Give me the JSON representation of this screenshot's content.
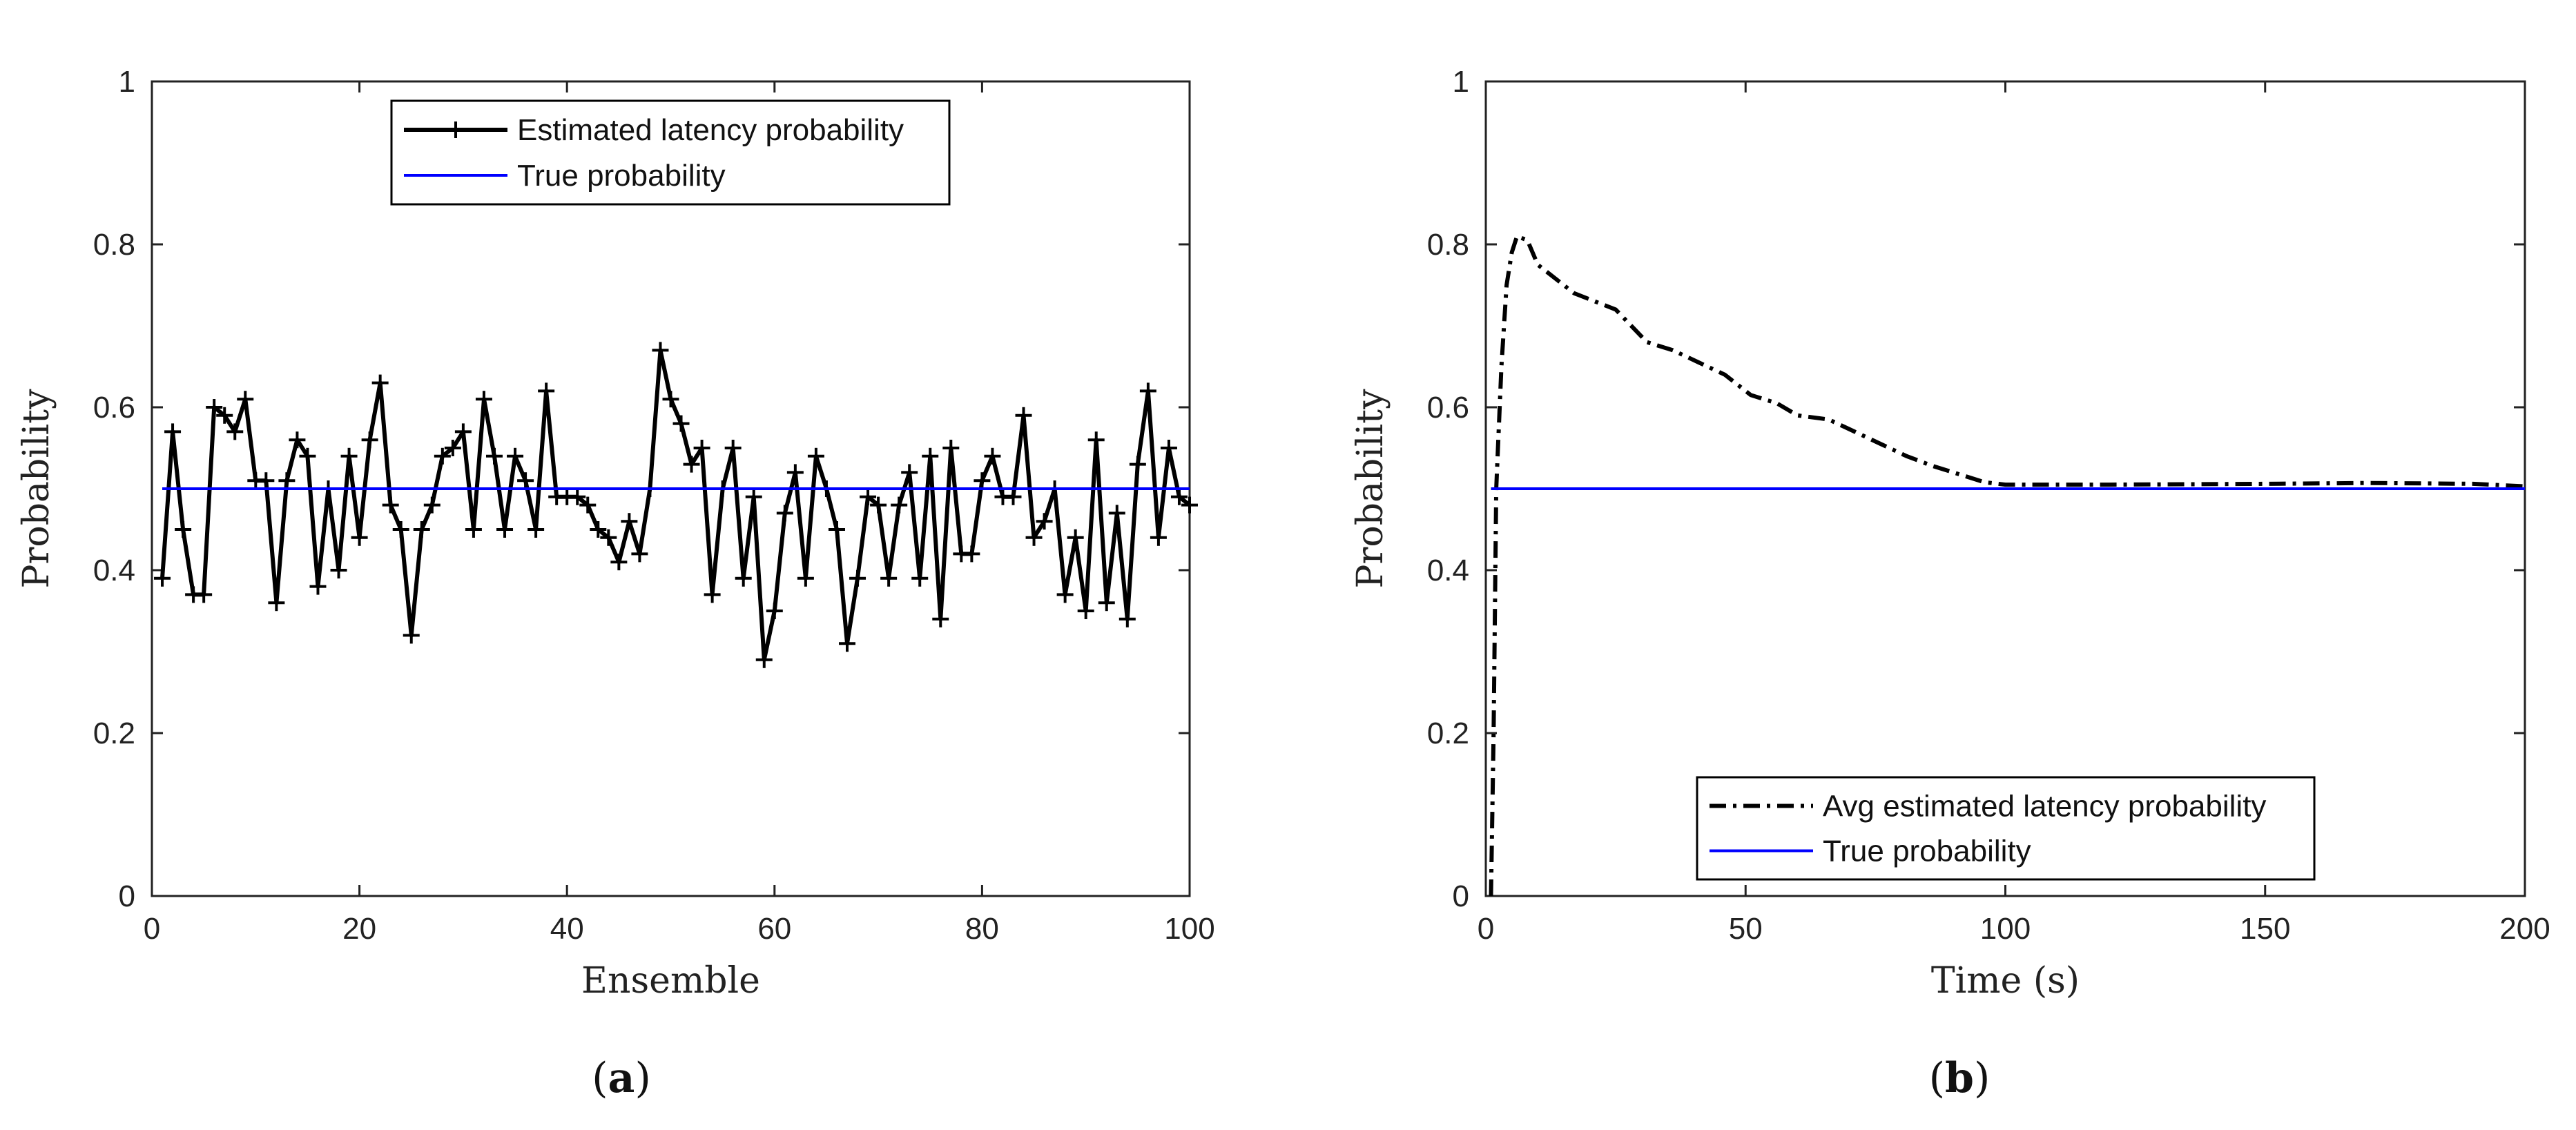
{
  "chart_data": [
    {
      "type": "line",
      "panel": "a",
      "caption_open": "(",
      "caption_letter": "a",
      "caption_close": ")",
      "xlabel": "Ensemble",
      "ylabel": "Probability",
      "xlim": [
        0,
        100
      ],
      "ylim": [
        0,
        1
      ],
      "xticks": [
        0,
        20,
        40,
        60,
        80,
        100
      ],
      "yticks": [
        0,
        0.2,
        0.4,
        0.6,
        0.8,
        1
      ],
      "xtick_labels": [
        "0",
        "20",
        "40",
        "60",
        "80",
        "100"
      ],
      "ytick_labels": [
        "0",
        "0.2",
        "0.4",
        "0.6",
        "0.8",
        "1"
      ],
      "legend_position": "top-center",
      "series": [
        {
          "name": "Estimated latency probability",
          "style": "solid-plus-markers",
          "color": "#000000",
          "x": [
            1,
            2,
            3,
            4,
            5,
            6,
            7,
            8,
            9,
            10,
            11,
            12,
            13,
            14,
            15,
            16,
            17,
            18,
            19,
            20,
            21,
            22,
            23,
            24,
            25,
            26,
            27,
            28,
            29,
            30,
            31,
            32,
            33,
            34,
            35,
            36,
            37,
            38,
            39,
            40,
            41,
            42,
            43,
            44,
            45,
            46,
            47,
            48,
            49,
            50,
            51,
            52,
            53,
            54,
            55,
            56,
            57,
            58,
            59,
            60,
            61,
            62,
            63,
            64,
            65,
            66,
            67,
            68,
            69,
            70,
            71,
            72,
            73,
            74,
            75,
            76,
            77,
            78,
            79,
            80,
            81,
            82,
            83,
            84,
            85,
            86,
            87,
            88,
            89,
            90,
            91,
            92,
            93,
            94,
            95,
            96,
            97,
            98,
            99,
            100
          ],
          "values": [
            0.39,
            0.57,
            0.45,
            0.37,
            0.37,
            0.6,
            0.59,
            0.57,
            0.61,
            0.51,
            0.51,
            0.36,
            0.51,
            0.56,
            0.54,
            0.38,
            0.5,
            0.4,
            0.54,
            0.44,
            0.56,
            0.63,
            0.48,
            0.45,
            0.32,
            0.45,
            0.48,
            0.54,
            0.55,
            0.57,
            0.45,
            0.61,
            0.54,
            0.45,
            0.54,
            0.51,
            0.45,
            0.62,
            0.49,
            0.49,
            0.49,
            0.48,
            0.45,
            0.44,
            0.41,
            0.46,
            0.42,
            0.5,
            0.67,
            0.61,
            0.58,
            0.53,
            0.55,
            0.37,
            0.5,
            0.55,
            0.39,
            0.49,
            0.29,
            0.35,
            0.47,
            0.52,
            0.39,
            0.54,
            0.5,
            0.45,
            0.31,
            0.39,
            0.49,
            0.48,
            0.39,
            0.48,
            0.52,
            0.39,
            0.54,
            0.34,
            0.55,
            0.42,
            0.42,
            0.51,
            0.54,
            0.49,
            0.49,
            0.59,
            0.44,
            0.46,
            0.5,
            0.37,
            0.44,
            0.35,
            0.56,
            0.36,
            0.47,
            0.34,
            0.53,
            0.62,
            0.44,
            0.55,
            0.49,
            0.48
          ]
        },
        {
          "name": "True probability",
          "style": "solid",
          "color": "#0000ff",
          "x": [
            1,
            100
          ],
          "values": [
            0.5,
            0.5
          ]
        }
      ]
    },
    {
      "type": "line",
      "panel": "b",
      "caption_open": "(",
      "caption_letter": "b",
      "caption_close": ")",
      "xlabel": "Time (s)",
      "ylabel": "Probability",
      "xlim": [
        0,
        200
      ],
      "ylim": [
        0,
        1
      ],
      "xticks": [
        0,
        50,
        100,
        150,
        200
      ],
      "yticks": [
        0,
        0.2,
        0.4,
        0.6,
        0.8,
        1
      ],
      "xtick_labels": [
        "0",
        "50",
        "100",
        "150",
        "200"
      ],
      "ytick_labels": [
        "0",
        "0.2",
        "0.4",
        "0.6",
        "0.8",
        "1"
      ],
      "legend_position": "bottom-right",
      "series": [
        {
          "name": "Avg estimated latency probability",
          "style": "dash-dot",
          "color": "#000000",
          "x": [
            1,
            1.5,
            2,
            3,
            4,
            5,
            6,
            8,
            10,
            13,
            17,
            21,
            25,
            28,
            31,
            36,
            41,
            46,
            51,
            56,
            60,
            66,
            71,
            76,
            81,
            86,
            91,
            96,
            100,
            120,
            150,
            170,
            190,
            200
          ],
          "values": [
            0.0,
            0.2,
            0.5,
            0.65,
            0.75,
            0.79,
            0.81,
            0.805,
            0.775,
            0.76,
            0.74,
            0.73,
            0.72,
            0.7,
            0.68,
            0.67,
            0.655,
            0.64,
            0.615,
            0.605,
            0.59,
            0.585,
            0.57,
            0.555,
            0.54,
            0.528,
            0.518,
            0.508,
            0.505,
            0.505,
            0.506,
            0.507,
            0.506,
            0.503
          ]
        },
        {
          "name": "True probability",
          "style": "solid",
          "color": "#0000ff",
          "x": [
            1,
            200
          ],
          "values": [
            0.5,
            0.5
          ]
        }
      ]
    }
  ]
}
